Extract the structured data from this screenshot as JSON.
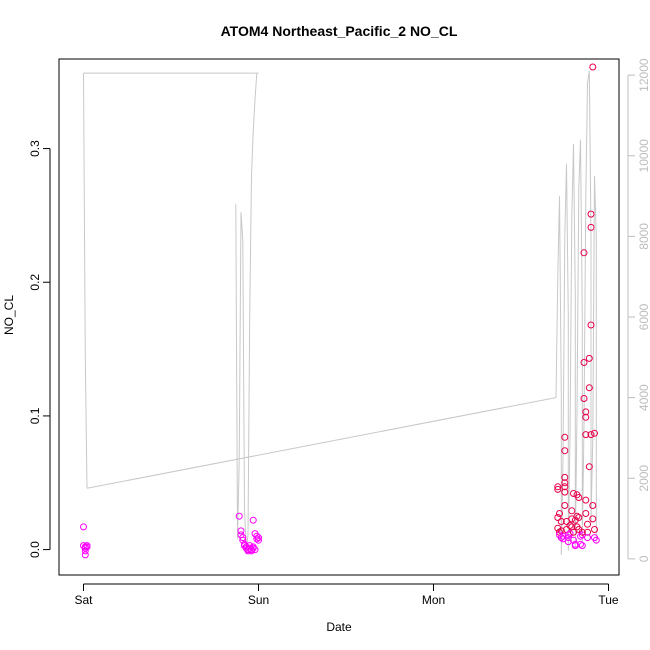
{
  "chart_data": {
    "type": "scatter",
    "title": "ATOM4 Northeast_Pacific_2 NO_CL",
    "xlabel": "Date",
    "ylabel": "NO_CL",
    "x_tick_labels": [
      "Sat",
      "Sun",
      "Mon",
      "Tue"
    ],
    "x_ticks_days": [
      0,
      1,
      2,
      3
    ],
    "xlim_days": [
      -0.14,
      3.06
    ],
    "ylim": [
      -0.019,
      0.367
    ],
    "y_ticks": [
      "0.0",
      "0.1",
      "0.2",
      "0.3"
    ],
    "y_tick_values": [
      0.0,
      0.1,
      0.2,
      0.3
    ],
    "right_axis": {
      "ylim": [
        -400,
        12400
      ],
      "ticks": [
        "0",
        "2000",
        "4000",
        "6000",
        "8000",
        "10000",
        "12000"
      ],
      "tick_values": [
        0,
        2000,
        4000,
        6000,
        8000,
        10000,
        12000
      ],
      "color": "#bdbdbd"
    },
    "point_colors": {
      "low": "#ff00ff",
      "high": "#e8004a"
    },
    "series": [
      {
        "type": "scatter",
        "points": [
          [
            0.0,
            0.017
          ],
          [
            0.0,
            0.003
          ],
          [
            0.01,
            0.002
          ],
          [
            0.01,
            0.001
          ],
          [
            0.01,
            -0.001
          ],
          [
            0.01,
            -0.004
          ],
          [
            0.02,
            0.003
          ],
          [
            0.02,
            0.002
          ],
          [
            0.89,
            0.025
          ],
          [
            0.9,
            0.014
          ],
          [
            0.9,
            0.011
          ],
          [
            0.91,
            0.009
          ],
          [
            0.91,
            0.007
          ],
          [
            0.92,
            0.004
          ],
          [
            0.92,
            0.003
          ],
          [
            0.93,
            0.002
          ],
          [
            0.93,
            0.001
          ],
          [
            0.94,
            0.0
          ],
          [
            0.94,
            -0.001
          ],
          [
            0.95,
            0.003
          ],
          [
            0.95,
            0.001
          ],
          [
            0.96,
            0.0
          ],
          [
            0.96,
            -0.001
          ],
          [
            0.97,
            0.002
          ],
          [
            0.97,
            0.001
          ],
          [
            0.97,
            0.022
          ],
          [
            0.98,
            0.0
          ],
          [
            0.98,
            0.012
          ],
          [
            0.99,
            0.01
          ],
          [
            0.99,
            0.008
          ],
          [
            1.0,
            0.009
          ],
          [
            1.0,
            0.007
          ],
          [
            2.71,
            0.047
          ],
          [
            2.71,
            0.045
          ],
          [
            2.71,
            0.024
          ],
          [
            2.71,
            0.016
          ],
          [
            2.72,
            0.013
          ],
          [
            2.72,
            0.011
          ],
          [
            2.72,
            0.027
          ],
          [
            2.73,
            0.021
          ],
          [
            2.73,
            0.014
          ],
          [
            2.73,
            0.009
          ],
          [
            2.74,
            0.01
          ],
          [
            2.74,
            0.008
          ],
          [
            2.75,
            0.084
          ],
          [
            2.75,
            0.074
          ],
          [
            2.75,
            0.054
          ],
          [
            2.75,
            0.05
          ],
          [
            2.75,
            0.047
          ],
          [
            2.75,
            0.043
          ],
          [
            2.75,
            0.033
          ],
          [
            2.76,
            0.021
          ],
          [
            2.76,
            0.015
          ],
          [
            2.77,
            0.011
          ],
          [
            2.77,
            0.009
          ],
          [
            2.77,
            0.006
          ],
          [
            2.78,
            0.018
          ],
          [
            2.78,
            0.012
          ],
          [
            2.79,
            0.029
          ],
          [
            2.79,
            0.023
          ],
          [
            2.79,
            0.017
          ],
          [
            2.8,
            0.042
          ],
          [
            2.8,
            0.013
          ],
          [
            2.8,
            0.007
          ],
          [
            2.81,
            0.004
          ],
          [
            2.81,
            0.003
          ],
          [
            2.81,
            0.022
          ],
          [
            2.82,
            0.041
          ],
          [
            2.82,
            0.025
          ],
          [
            2.82,
            0.017
          ],
          [
            2.83,
            0.039
          ],
          [
            2.83,
            0.024
          ],
          [
            2.83,
            0.015
          ],
          [
            2.84,
            0.01
          ],
          [
            2.84,
            0.004
          ],
          [
            2.85,
            0.003
          ],
          [
            2.85,
            0.013
          ],
          [
            2.85,
            0.011
          ],
          [
            2.86,
            0.222
          ],
          [
            2.86,
            0.14
          ],
          [
            2.86,
            0.113
          ],
          [
            2.87,
            0.103
          ],
          [
            2.87,
            0.099
          ],
          [
            2.87,
            0.086
          ],
          [
            2.87,
            0.037
          ],
          [
            2.87,
            0.027
          ],
          [
            2.88,
            0.019
          ],
          [
            2.88,
            0.013
          ],
          [
            2.88,
            0.009
          ],
          [
            2.89,
            0.143
          ],
          [
            2.89,
            0.121
          ],
          [
            2.89,
            0.062
          ],
          [
            2.9,
            0.251
          ],
          [
            2.9,
            0.241
          ],
          [
            2.9,
            0.168
          ],
          [
            2.9,
            0.086
          ],
          [
            2.91,
            0.033
          ],
          [
            2.91,
            0.023
          ],
          [
            2.91,
            0.361
          ],
          [
            2.92,
            0.087
          ],
          [
            2.92,
            0.015
          ],
          [
            2.92,
            0.009
          ],
          [
            2.93,
            0.007
          ]
        ]
      },
      {
        "type": "line",
        "axis": "right",
        "color": "#c8c8c8",
        "points": [
          [
            0.0,
            12050
          ],
          [
            0.02,
            12050
          ],
          [
            1.0,
            12050
          ],
          [
            0.97,
            11500
          ],
          [
            0.97,
            10800
          ],
          [
            0.96,
            10300
          ],
          [
            0.96,
            9100
          ],
          [
            0.96,
            7500
          ],
          [
            0.95,
            5000
          ],
          [
            0.95,
            2000
          ],
          [
            0.94,
            400
          ],
          [
            0.93,
            300
          ],
          [
            0.92,
            2000
          ],
          [
            0.92,
            5200
          ],
          [
            0.91,
            7600
          ],
          [
            0.91,
            8600
          ],
          [
            0.9,
            8000
          ],
          [
            0.9,
            4200
          ],
          [
            0.89,
            1500
          ],
          [
            0.88,
            300
          ],
          [
            0.88,
            4500
          ],
          [
            0.87,
            7600
          ],
          [
            0.87,
            8800
          ],
          [
            0.02,
            1600
          ],
          [
            0.01,
            3000
          ],
          [
            0.0,
            12050
          ]
        ],
        "segments": [
          [
            [
              0.0,
              12050
            ],
            [
              0.01,
              5000
            ],
            [
              0.02,
              1750
            ]
          ],
          [
            [
              0.02,
              1750
            ],
            [
              2.7,
              4000
            ]
          ],
          [
            [
              0.87,
              8800
            ],
            [
              0.88,
              500
            ],
            [
              0.89,
              2400
            ],
            [
              0.9,
              8600
            ],
            [
              0.91,
              7900
            ],
            [
              0.92,
              1200
            ],
            [
              0.93,
              200
            ],
            [
              0.94,
              600
            ],
            [
              0.95,
              6000
            ],
            [
              0.96,
              9500
            ],
            [
              0.97,
              10600
            ],
            [
              0.98,
              11400
            ],
            [
              0.99,
              12050
            ],
            [
              1.0,
              12050
            ],
            [
              0.0,
              12050
            ]
          ],
          [
            [
              2.7,
              4000
            ],
            [
              2.71,
              7000
            ],
            [
              2.72,
              9000
            ],
            [
              2.73,
              4000
            ],
            [
              2.73,
              100
            ],
            [
              2.74,
              2500
            ],
            [
              2.75,
              8000
            ],
            [
              2.76,
              9800
            ],
            [
              2.77,
              6000
            ],
            [
              2.77,
              200
            ],
            [
              2.78,
              3000
            ],
            [
              2.79,
              8500
            ],
            [
              2.8,
              10300
            ],
            [
              2.81,
              6500
            ],
            [
              2.81,
              300
            ],
            [
              2.82,
              3600
            ],
            [
              2.83,
              9200
            ],
            [
              2.84,
              10400
            ],
            [
              2.85,
              6000
            ],
            [
              2.85,
              400
            ],
            [
              2.86,
              3300
            ],
            [
              2.87,
              9000
            ],
            [
              2.88,
              11800
            ],
            [
              2.89,
              12100
            ],
            [
              2.9,
              8000
            ],
            [
              2.9,
              900
            ],
            [
              2.91,
              3000
            ],
            [
              2.92,
              9500
            ],
            [
              2.93,
              8000
            ],
            [
              2.93,
              400
            ]
          ]
        ]
      }
    ]
  }
}
